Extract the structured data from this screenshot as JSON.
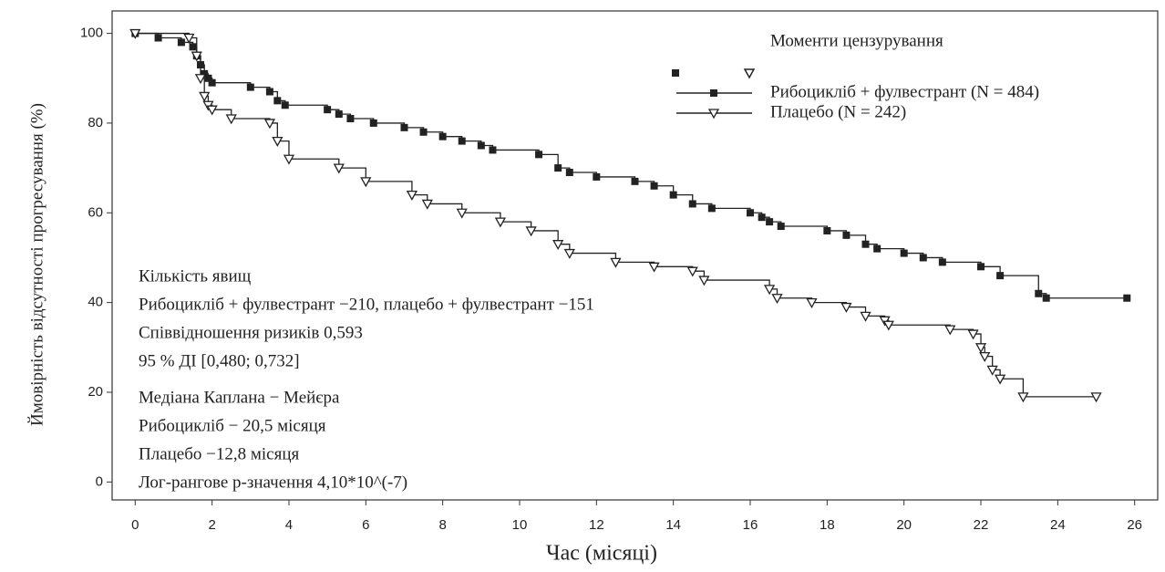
{
  "chart_data": {
    "type": "step",
    "x_label": "Час (місяці)",
    "y_label": "Ймовірність відсутності прогресування (%)",
    "legend_title": "Моменти цензурування",
    "xlim": [
      -0.6,
      26.6
    ],
    "ylim": [
      -4,
      105
    ],
    "xticks": [
      0,
      2,
      4,
      6,
      8,
      10,
      12,
      14,
      16,
      18,
      20,
      22,
      24,
      26
    ],
    "yticks": [
      0,
      20,
      40,
      60,
      80,
      100
    ],
    "annotations": [
      "Кількість явищ",
      "Рибоцикліб + фулвестрант −210,  плацебо + фулвестрант −151",
      "Співвідношення ризиків  0,593",
      "95 % ДІ [0,480; 0,732]",
      "Медіана Каплана − Мейєра",
      "Рибоцикліб − 20,5 місяця",
      "Плацебо −12,8 місяця",
      "Лог-рангове р-значення  4,10*10^(-7)"
    ],
    "series": [
      {
        "name": "Рибоцикліб + фулвестрант (N = 484)",
        "color": "#222222",
        "marker": "square",
        "x": [
          0,
          0.6,
          1.2,
          1.5,
          1.6,
          1.7,
          1.8,
          1.9,
          2.0,
          3.0,
          3.5,
          3.7,
          3.9,
          5.0,
          5.3,
          5.6,
          6.2,
          7.0,
          7.5,
          8.0,
          8.5,
          9.0,
          9.3,
          10.5,
          11.0,
          11.3,
          12.0,
          13.0,
          13.5,
          14.0,
          14.5,
          15.0,
          16.0,
          16.3,
          16.5,
          16.8,
          18.0,
          18.5,
          19.0,
          19.3,
          20.0,
          20.5,
          21.0,
          22.0,
          22.5,
          23.5,
          23.7,
          25.8
        ],
        "values": [
          100,
          99,
          98,
          97,
          95,
          93,
          91,
          90,
          89,
          88,
          87,
          85,
          84,
          83,
          82,
          81,
          80,
          79,
          78,
          77,
          76,
          75,
          74,
          73,
          70,
          69,
          68,
          67,
          66,
          64,
          62,
          61,
          60,
          59,
          58,
          57,
          56,
          55,
          53,
          52,
          51,
          50,
          49,
          48,
          46,
          42,
          41,
          41
        ]
      },
      {
        "name": "Плацебо (N = 242)",
        "color": "#222222",
        "marker": "triangle",
        "x": [
          0,
          1.4,
          1.6,
          1.7,
          1.8,
          1.9,
          2.0,
          2.5,
          3.5,
          3.7,
          4.0,
          5.3,
          6.0,
          7.2,
          7.6,
          8.5,
          9.5,
          10.3,
          11.0,
          11.3,
          12.5,
          13.5,
          14.5,
          14.8,
          16.5,
          16.7,
          17.6,
          18.5,
          19.0,
          19.5,
          19.6,
          21.2,
          21.8,
          22.0,
          22.1,
          22.3,
          22.5,
          23.1,
          25.0
        ],
        "values": [
          100,
          99,
          95,
          90,
          86,
          84,
          83,
          81,
          80,
          76,
          72,
          70,
          67,
          64,
          62,
          60,
          58,
          56,
          53,
          51,
          49,
          48,
          47,
          45,
          43,
          41,
          40,
          39,
          37,
          36,
          35,
          34,
          33,
          30,
          28,
          25,
          23,
          19,
          19
        ]
      }
    ]
  }
}
